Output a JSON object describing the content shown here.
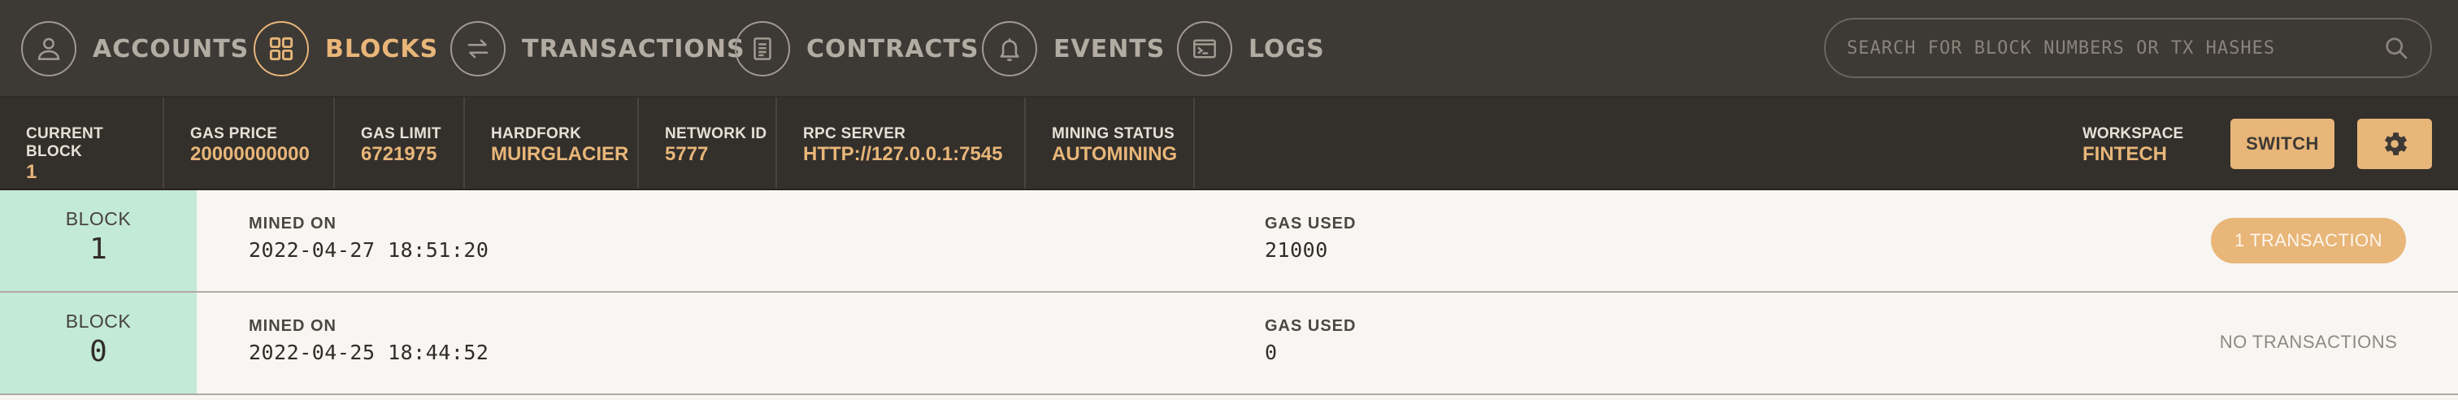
{
  "nav": {
    "items": [
      {
        "label": "ACCOUNTS",
        "icon": "user-icon",
        "active": false
      },
      {
        "label": "BLOCKS",
        "icon": "blocks-grid-icon",
        "active": true
      },
      {
        "label": "TRANSACTIONS",
        "icon": "swap-arrows-icon",
        "active": false
      },
      {
        "label": "CONTRACTS",
        "icon": "document-icon",
        "active": false
      },
      {
        "label": "EVENTS",
        "icon": "bell-icon",
        "active": false
      },
      {
        "label": "LOGS",
        "icon": "terminal-icon",
        "active": false
      }
    ],
    "search": {
      "placeholder": "SEARCH FOR BLOCK NUMBERS OR TX HASHES",
      "value": ""
    }
  },
  "status": {
    "items": [
      {
        "label": "CURRENT BLOCK",
        "value": "1"
      },
      {
        "label": "GAS PRICE",
        "value": "20000000000"
      },
      {
        "label": "GAS LIMIT",
        "value": "6721975"
      },
      {
        "label": "HARDFORK",
        "value": "MUIRGLACIER"
      },
      {
        "label": "NETWORK ID",
        "value": "5777"
      },
      {
        "label": "RPC SERVER",
        "value": "HTTP://127.0.0.1:7545"
      },
      {
        "label": "MINING STATUS",
        "value": "AUTOMINING"
      }
    ],
    "workspace": {
      "label": "WORKSPACE",
      "value": "FINTECH"
    },
    "switch_label": "SWITCH"
  },
  "blocks": [
    {
      "label": "BLOCK",
      "number": "1",
      "mined_label": "MINED ON",
      "mined_on": "2022-04-27 18:51:20",
      "gas_label": "GAS USED",
      "gas_used": "21000",
      "tx": "1 TRANSACTION",
      "has_tx": true
    },
    {
      "label": "BLOCK",
      "number": "0",
      "mined_label": "MINED ON",
      "mined_on": "2022-04-25 18:44:52",
      "gas_label": "GAS USED",
      "gas_used": "0",
      "tx": "NO TRANSACTIONS",
      "has_tx": false
    }
  ],
  "colors": {
    "accent": "#e8b679",
    "nav_bg": "#3d3935",
    "status_bg": "#332f2b",
    "block_badge": "#c3e9d7",
    "row_bg": "#f8f6f2"
  }
}
